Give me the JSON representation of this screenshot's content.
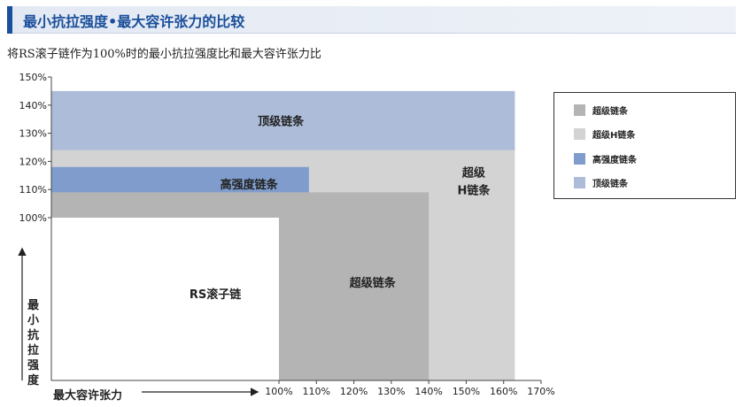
{
  "header": {
    "title": "最小抗拉强度•最大容许张力的比较",
    "accent_color": "#1a4f9a"
  },
  "subtitle": "将RS滚子链作为100%时的最小抗拉强度比和最大容许张力比",
  "chart_data": {
    "type": "area",
    "title": "最小抗拉强度•最大容许张力的比较",
    "xlabel": "最大容许张力",
    "ylabel": "最小抗拉强度",
    "xlim": [
      100,
      170
    ],
    "ylim": [
      85,
      150
    ],
    "x_ticks": [
      "100%",
      "110%",
      "120%",
      "130%",
      "140%",
      "150%",
      "160%",
      "170%"
    ],
    "y_ticks": [
      "100%",
      "110%",
      "120%",
      "130%",
      "140%",
      "150%"
    ],
    "regions": [
      {
        "name": "超级H链条",
        "label": "超级\nH链条",
        "x_max": 163,
        "y_max": 125,
        "color": "#d3d3d3"
      },
      {
        "name": "超级链条",
        "label": "超级链条",
        "x_max": 140,
        "y_max": 109,
        "color": "#b4b4b4"
      },
      {
        "name": "RS滚子链",
        "label": "RS滚子链",
        "x_max": 100,
        "y_max": 100,
        "color": "#ffffff"
      },
      {
        "name": "高强度链条",
        "label": "高强度链条",
        "x_max": 108,
        "y_min": 109,
        "y_max": 118,
        "color": "#7f9ccc"
      },
      {
        "name": "顶级链条",
        "label": "顶级链条",
        "x_max": 163,
        "y_min": 124,
        "y_max": 145,
        "color": "#adbcd9"
      }
    ]
  },
  "legend": {
    "items": [
      {
        "label": "超级链条",
        "color": "#b4b4b4"
      },
      {
        "label": "超级H链条",
        "color": "#d3d3d3"
      },
      {
        "label": "高强度链条",
        "color": "#7f9ccc"
      },
      {
        "label": "顶级链条",
        "color": "#adbcd9"
      }
    ]
  }
}
